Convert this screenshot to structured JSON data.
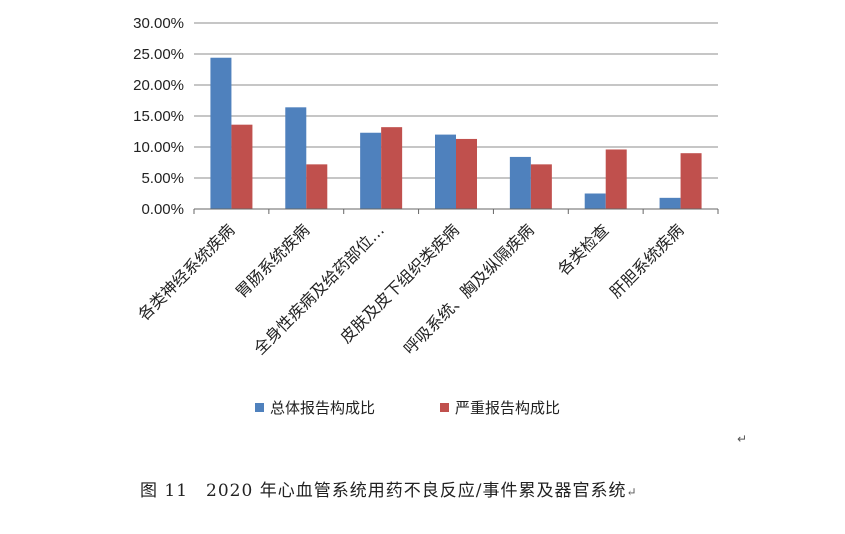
{
  "chart_data": {
    "type": "bar",
    "categories": [
      "各类神经系统疾病",
      "胃肠系统疾病",
      "全身性疾病及给药部位…",
      "皮肤及皮下组织类疾病",
      "呼吸系统、胸及纵隔疾病",
      "各类检查",
      "肝胆系统疾病"
    ],
    "series": [
      {
        "name": "总体报告构成比",
        "color": "#4F81BD",
        "values": [
          24.4,
          16.4,
          12.3,
          12.0,
          8.4,
          2.5,
          1.8
        ]
      },
      {
        "name": "严重报告构成比",
        "color": "#C0504D",
        "values": [
          13.6,
          7.2,
          13.2,
          11.3,
          7.2,
          9.6,
          9.0
        ]
      }
    ],
    "ylim": [
      0,
      30
    ],
    "yticks": [
      "0.00%",
      "5.00%",
      "10.00%",
      "15.00%",
      "20.00%",
      "25.00%",
      "30.00%"
    ],
    "grid": true,
    "legend": "bottom"
  },
  "paragraph_mark": "↵",
  "caption": {
    "figure_no": "图 11",
    "text": "2020 年心血管系统用药不良反应/事件累及器官系统",
    "mark": "↵"
  }
}
